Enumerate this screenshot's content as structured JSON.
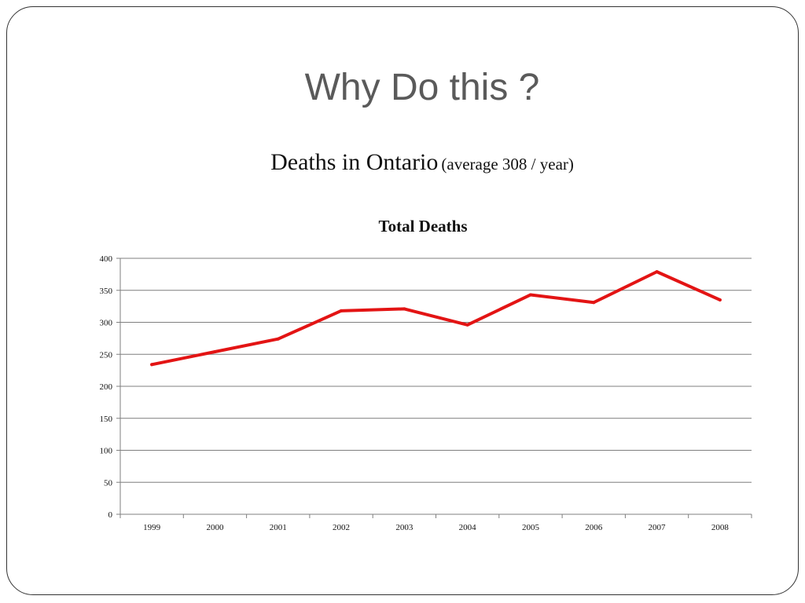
{
  "slide": {
    "title": "Why Do this ?",
    "subtitle_main": "Deaths in Ontario",
    "subtitle_note": "(average 308 / year)"
  },
  "colors": {
    "line": "#e31414",
    "grid": "#7f7f7f",
    "title_text": "#5a5a5a"
  },
  "chart_data": {
    "type": "line",
    "title": "Total Deaths",
    "xlabel": "",
    "ylabel": "",
    "categories": [
      "1999",
      "2000",
      "2001",
      "2002",
      "2003",
      "2004",
      "2005",
      "2006",
      "2007",
      "2008"
    ],
    "series": [
      {
        "values": [
          234,
          254,
          274,
          318,
          321,
          296,
          343,
          331,
          379,
          335
        ]
      }
    ],
    "ylim": [
      0,
      400
    ],
    "yticks": [
      0,
      50,
      100,
      150,
      200,
      250,
      300,
      350,
      400
    ],
    "grid": true,
    "legend": "none"
  }
}
